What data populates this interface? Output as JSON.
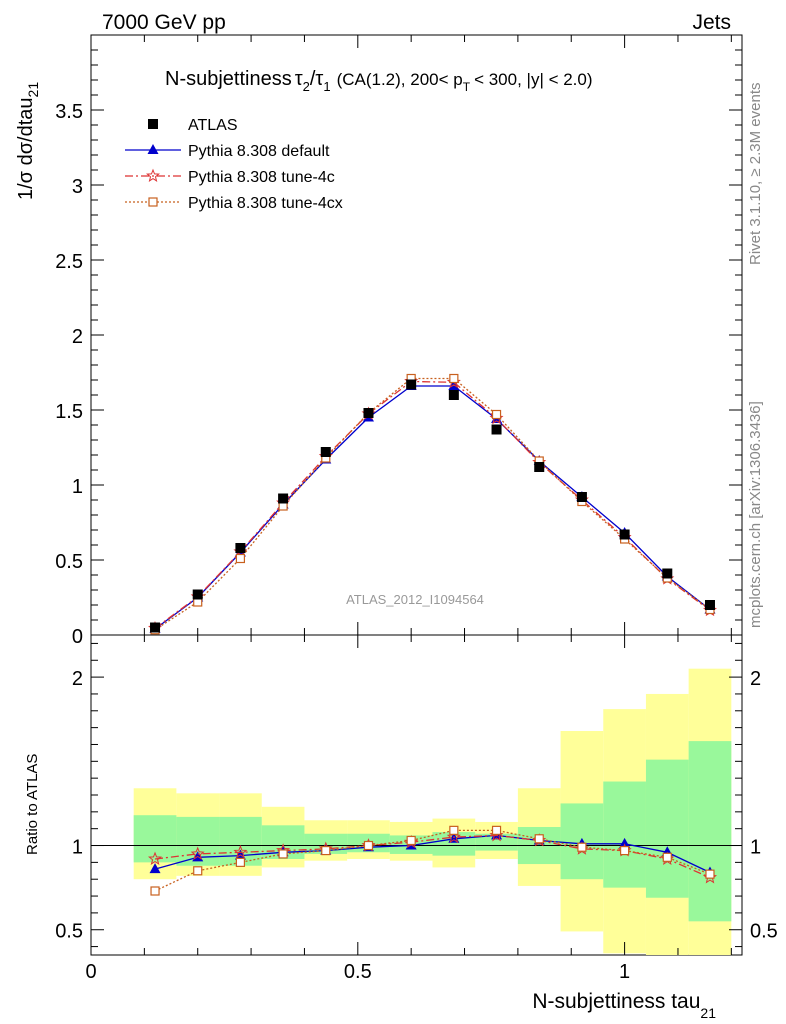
{
  "header": {
    "left": "7000 GeV pp",
    "right": "Jets"
  },
  "title": {
    "main": "N-subjettiness",
    "tau2": "τ",
    "tau2_sub": "2",
    "slash": "/",
    "tau1": "τ",
    "tau1_sub": "1",
    "detail_a": "(CA(1.2), 200< p",
    "detail_sub": "T",
    "detail_b": "< 300, |y| < 2.0)"
  },
  "side_labels": {
    "rivet": "Rivet 3.1.10, ≥ 2.3M events",
    "mcplots": "mcplots.cern.ch [arXiv:1306.3436]"
  },
  "watermark": "ATLAS_2012_I1094564",
  "axes": {
    "ylabel_top_main": "1/σ dσ/dtau",
    "ylabel_top_sub": "21",
    "ylabel_bottom": "Ratio to ATLAS",
    "xlabel_main": "N-subjettiness tau",
    "xlabel_sub": "21"
  },
  "colors": {
    "atlas": "#000000",
    "default": "#0000cc",
    "tune4c": "#dd3333",
    "tune4cx": "#c8601e",
    "band_inner": "#99f89b",
    "band_outer": "#ffff99"
  },
  "chart_data": [
    {
      "type": "line",
      "panel": "main",
      "xlim": [
        0,
        1.22
      ],
      "ylim": [
        0,
        4.0
      ],
      "yticks": [
        "0",
        "0.5",
        "1",
        "1.5",
        "2",
        "2.5",
        "3",
        "3.5"
      ],
      "xticks": [
        "0",
        "0.5",
        "1"
      ],
      "legend_position": "top-left",
      "x": [
        0.12,
        0.2,
        0.28,
        0.36,
        0.44,
        0.52,
        0.6,
        0.68,
        0.76,
        0.84,
        0.92,
        1.0,
        1.08,
        1.16
      ],
      "series": [
        {
          "name": "ATLAS",
          "style": "data",
          "values": [
            0.05,
            0.27,
            0.58,
            0.91,
            1.22,
            1.48,
            1.67,
            1.6,
            1.37,
            1.12,
            0.92,
            0.67,
            0.41,
            0.2
          ]
        },
        {
          "name": "Pythia 8.308 default",
          "style": "default",
          "values": [
            0.04,
            0.25,
            0.55,
            0.87,
            1.17,
            1.45,
            1.66,
            1.66,
            1.44,
            1.16,
            0.92,
            0.68,
            0.39,
            0.17
          ]
        },
        {
          "name": "Pythia 8.308 tune-4c",
          "style": "tune4c",
          "values": [
            0.045,
            0.255,
            0.555,
            0.88,
            1.19,
            1.475,
            1.69,
            1.685,
            1.445,
            1.15,
            0.9,
            0.65,
            0.375,
            0.165
          ]
        },
        {
          "name": "Pythia 8.308 tune-4cx",
          "style": "tune4cx",
          "values": [
            0.035,
            0.22,
            0.51,
            0.86,
            1.18,
            1.48,
            1.71,
            1.71,
            1.47,
            1.16,
            0.89,
            0.64,
            0.38,
            0.17
          ]
        }
      ]
    },
    {
      "type": "line",
      "panel": "ratio",
      "xlim": [
        0,
        1.22
      ],
      "ylim": [
        0.35,
        2.25
      ],
      "yticks": [
        "0.5",
        "1",
        "2"
      ],
      "bin_edges": [
        0.08,
        0.16,
        0.24,
        0.32,
        0.4,
        0.48,
        0.56,
        0.64,
        0.72,
        0.8,
        0.88,
        0.96,
        1.04,
        1.12,
        1.2
      ],
      "band_inner": [
        [
          0.9,
          1.18
        ],
        [
          0.88,
          1.17
        ],
        [
          0.88,
          1.17
        ],
        [
          0.92,
          1.12
        ],
        [
          0.95,
          1.07
        ],
        [
          0.96,
          1.07
        ],
        [
          0.95,
          1.06
        ],
        [
          0.94,
          1.08
        ],
        [
          0.97,
          1.07
        ],
        [
          0.89,
          1.11
        ],
        [
          0.8,
          1.25
        ],
        [
          0.75,
          1.38
        ],
        [
          0.69,
          1.51
        ],
        [
          0.55,
          1.62
        ]
      ],
      "band_outer": [
        [
          0.8,
          1.34
        ],
        [
          0.82,
          1.31
        ],
        [
          0.82,
          1.31
        ],
        [
          0.87,
          1.23
        ],
        [
          0.91,
          1.15
        ],
        [
          0.92,
          1.15
        ],
        [
          0.91,
          1.14
        ],
        [
          0.87,
          1.16
        ],
        [
          0.92,
          1.14
        ],
        [
          0.76,
          1.34
        ],
        [
          0.49,
          1.68
        ],
        [
          0.36,
          1.81
        ],
        [
          0.35,
          1.9
        ],
        [
          0.35,
          2.05
        ]
      ],
      "x": [
        0.12,
        0.2,
        0.28,
        0.36,
        0.44,
        0.52,
        0.6,
        0.68,
        0.76,
        0.84,
        0.92,
        1.0,
        1.08,
        1.16
      ],
      "series": [
        {
          "name": "Pythia 8.308 default",
          "style": "default",
          "values": [
            0.86,
            0.93,
            0.94,
            0.96,
            0.97,
            0.99,
            1.0,
            1.04,
            1.06,
            1.03,
            1.01,
            1.01,
            0.96,
            0.84
          ]
        },
        {
          "name": "Pythia 8.308 tune-4c",
          "style": "tune4c",
          "values": [
            0.92,
            0.95,
            0.96,
            0.97,
            0.98,
            1.0,
            1.02,
            1.05,
            1.06,
            1.03,
            0.98,
            0.97,
            0.92,
            0.81
          ]
        },
        {
          "name": "Pythia 8.308 tune-4cx",
          "style": "tune4cx",
          "values": [
            0.73,
            0.85,
            0.9,
            0.95,
            0.97,
            1.0,
            1.03,
            1.09,
            1.09,
            1.04,
            0.99,
            0.97,
            0.93,
            0.83
          ]
        }
      ]
    }
  ]
}
